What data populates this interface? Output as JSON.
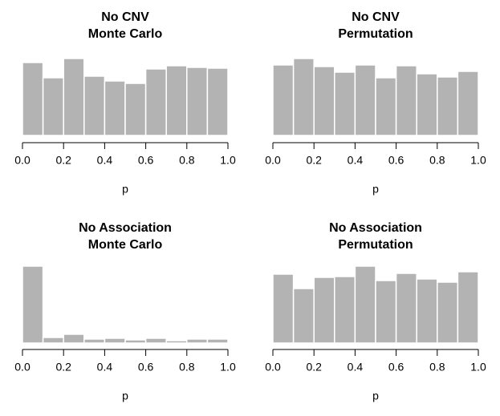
{
  "chart_data": [
    {
      "type": "histogram",
      "title": [
        "No CNV",
        "Monte Carlo"
      ],
      "xlabel": "p",
      "color": "#b3b3b3",
      "bins": [
        0,
        0.1,
        0.2,
        0.3,
        0.4,
        0.5,
        0.6,
        0.7,
        0.8,
        0.9,
        1.0
      ],
      "values": [
        91,
        72,
        96,
        74,
        68,
        65,
        83,
        87,
        85,
        84
      ],
      "xlim": [
        0,
        1
      ],
      "xticks": [
        {
          "value": 0,
          "label": "0.0"
        },
        {
          "value": 0.2,
          "label": "0.2"
        },
        {
          "value": 0.4,
          "label": "0.4"
        },
        {
          "value": 0.6,
          "label": "0.6"
        },
        {
          "value": 0.8,
          "label": "0.8"
        },
        {
          "value": 1,
          "label": "1.0"
        }
      ]
    },
    {
      "type": "histogram",
      "title": [
        "No CNV",
        "Permutation"
      ],
      "xlabel": "p",
      "color": "#b3b3b3",
      "bins": [
        0,
        0.1,
        0.2,
        0.3,
        0.4,
        0.5,
        0.6,
        0.7,
        0.8,
        0.9,
        1.0
      ],
      "values": [
        88,
        96,
        86,
        79,
        88,
        72,
        87,
        77,
        73,
        80
      ],
      "xlim": [
        0,
        1
      ],
      "xticks": [
        {
          "value": 0,
          "label": "0.0"
        },
        {
          "value": 0.2,
          "label": "0.2"
        },
        {
          "value": 0.4,
          "label": "0.4"
        },
        {
          "value": 0.6,
          "label": "0.6"
        },
        {
          "value": 0.8,
          "label": "0.8"
        },
        {
          "value": 1,
          "label": "1.0"
        }
      ]
    },
    {
      "type": "histogram",
      "title": [
        "No Association",
        "Monte Carlo"
      ],
      "xlabel": "p",
      "color": "#b3b3b3",
      "bins": [
        0,
        0.1,
        0.2,
        0.3,
        0.4,
        0.5,
        0.6,
        0.7,
        0.8,
        0.9,
        1.0
      ],
      "values": [
        96,
        7,
        11,
        5,
        6,
        4,
        6,
        3,
        5,
        5
      ],
      "xlim": [
        0,
        1
      ],
      "xticks": [
        {
          "value": 0,
          "label": "0.0"
        },
        {
          "value": 0.2,
          "label": "0.2"
        },
        {
          "value": 0.4,
          "label": "0.4"
        },
        {
          "value": 0.6,
          "label": "0.6"
        },
        {
          "value": 0.8,
          "label": "0.8"
        },
        {
          "value": 1,
          "label": "1.0"
        }
      ]
    },
    {
      "type": "histogram",
      "title": [
        "No Association",
        "Permutation"
      ],
      "xlabel": "p",
      "color": "#b3b3b3",
      "bins": [
        0,
        0.1,
        0.2,
        0.3,
        0.4,
        0.5,
        0.6,
        0.7,
        0.8,
        0.9,
        1.0
      ],
      "values": [
        86,
        68,
        82,
        83,
        96,
        78,
        87,
        80,
        76,
        89
      ],
      "xlim": [
        0,
        1
      ],
      "xticks": [
        {
          "value": 0,
          "label": "0.0"
        },
        {
          "value": 0.2,
          "label": "0.2"
        },
        {
          "value": 0.4,
          "label": "0.4"
        },
        {
          "value": 0.6,
          "label": "0.6"
        },
        {
          "value": 0.8,
          "label": "0.8"
        },
        {
          "value": 1,
          "label": "1.0"
        }
      ]
    }
  ]
}
